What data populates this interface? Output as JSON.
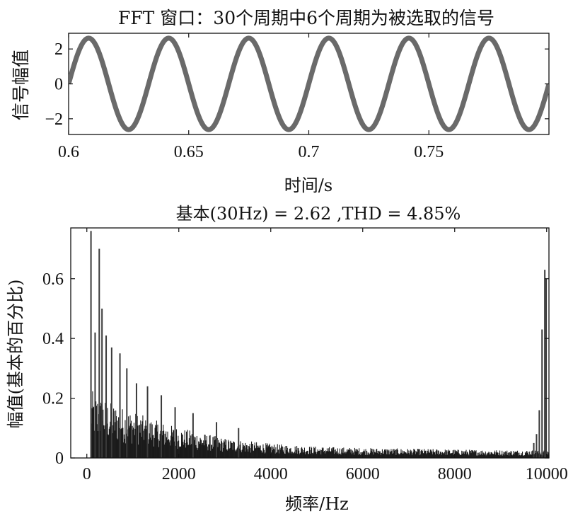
{
  "chart_data": [
    {
      "type": "line",
      "title": "FFT 窗口：30个周期中6个周期为被选取的信号",
      "xlabel": "时间/s",
      "ylabel": "信号幅值",
      "xlim": [
        0.6,
        0.8
      ],
      "ylim": [
        -2.9,
        2.9
      ],
      "x_ticks": [
        0.6,
        0.65,
        0.7,
        0.75
      ],
      "x_tick_labels": [
        "0.6",
        "0.65",
        "0.7",
        "0.75"
      ],
      "y_ticks": [
        2,
        0,
        -2
      ],
      "y_tick_labels": [
        "2",
        "0",
        "−2"
      ],
      "series": [
        {
          "amplitude": 2.62,
          "frequency_hz": 30,
          "phase_zero_at": 0.6,
          "color": "#6a6a6a"
        }
      ],
      "grid": false
    },
    {
      "type": "bar",
      "title": "基本(30Hz) = 2.62 ,THD = 4.85%",
      "xlabel": "频率/Hz",
      "ylabel": "幅值(基本的百分比)",
      "xlim": [
        -350,
        10050
      ],
      "ylim": [
        0,
        0.77
      ],
      "x_ticks": [
        0,
        2000,
        4000,
        6000,
        8000,
        10000
      ],
      "x_tick_labels": [
        "0",
        "2000",
        "4000",
        "6000",
        "8000",
        "10000"
      ],
      "y_ticks": [
        0,
        0.2,
        0.4,
        0.6
      ],
      "y_tick_labels": [
        "0",
        "0.2",
        "0.4",
        "0.6"
      ],
      "envelope": {
        "start_hz": 90,
        "x": [
          90,
          300,
          600,
          1000,
          1500,
          2000,
          3000,
          4000,
          5000,
          6000,
          7000,
          8000,
          9000,
          9600
        ],
        "y": [
          0.19,
          0.17,
          0.15,
          0.13,
          0.105,
          0.085,
          0.055,
          0.04,
          0.032,
          0.028,
          0.026,
          0.024,
          0.022,
          0.022
        ]
      },
      "peaks": [
        {
          "x": 90,
          "y": 0.76
        },
        {
          "x": 180,
          "y": 0.42
        },
        {
          "x": 270,
          "y": 0.7
        },
        {
          "x": 330,
          "y": 0.5
        },
        {
          "x": 420,
          "y": 0.41
        },
        {
          "x": 540,
          "y": 0.37
        },
        {
          "x": 720,
          "y": 0.35
        },
        {
          "x": 870,
          "y": 0.3
        },
        {
          "x": 1080,
          "y": 0.25
        },
        {
          "x": 1320,
          "y": 0.24
        },
        {
          "x": 1620,
          "y": 0.21
        },
        {
          "x": 1920,
          "y": 0.17
        },
        {
          "x": 2310,
          "y": 0.15
        },
        {
          "x": 2820,
          "y": 0.12
        },
        {
          "x": 3300,
          "y": 0.1
        },
        {
          "x": 9720,
          "y": 0.05
        },
        {
          "x": 9780,
          "y": 0.08
        },
        {
          "x": 9840,
          "y": 0.16
        },
        {
          "x": 9900,
          "y": 0.43
        },
        {
          "x": 9960,
          "y": 0.63
        },
        {
          "x": 9990,
          "y": 0.6
        }
      ],
      "bar_color": "#1a1a1a",
      "grid": false
    }
  ]
}
